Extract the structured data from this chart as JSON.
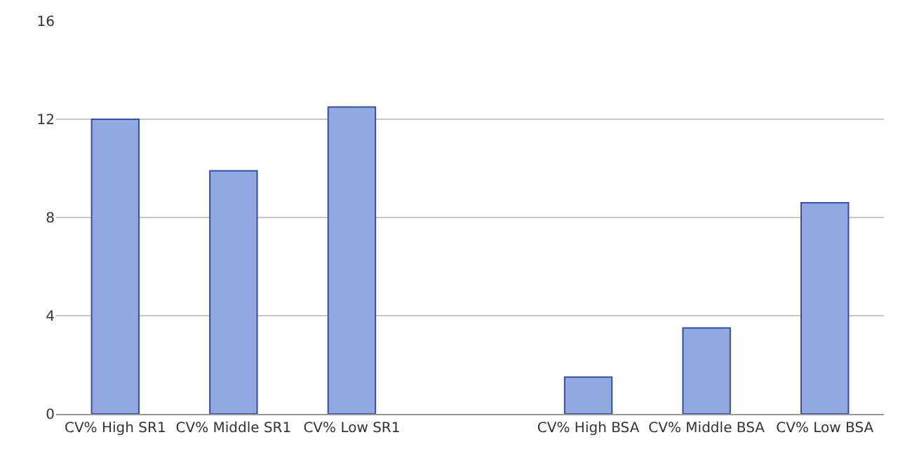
{
  "chart_data": {
    "type": "bar",
    "categories": [
      "CV% High SR1",
      "CV% Middle SR1",
      "CV% Low SR1",
      null,
      "CV% High BSA",
      "CV% Middle BSA",
      "CV% Low BSA"
    ],
    "values": [
      12.0,
      9.9,
      12.5,
      null,
      1.5,
      3.5,
      8.6
    ],
    "color": "#91a8e0",
    "ylim": [
      0,
      16
    ],
    "yticks": [
      0,
      4,
      8,
      12,
      16
    ],
    "grid": "y"
  }
}
